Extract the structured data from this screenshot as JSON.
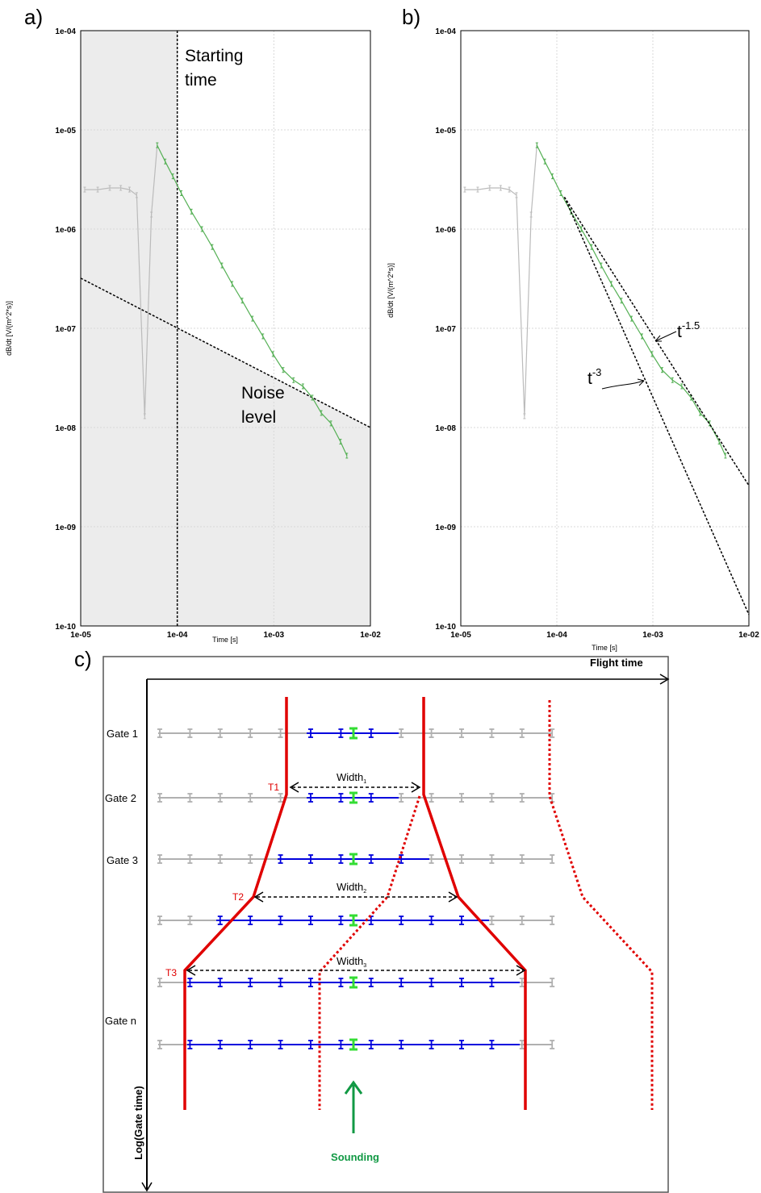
{
  "figure": {
    "panel_labels": [
      "a)",
      "b)",
      "c)"
    ]
  },
  "chart_data": [
    {
      "type": "line",
      "panel": "a)",
      "xscale": "log",
      "yscale": "log",
      "xlim": [
        1e-05,
        0.01
      ],
      "ylim": [
        1e-10,
        0.0001
      ],
      "xlabel": "Time [s]",
      "ylabel": "dB/dt [V/(m^2*s)]",
      "xticks": [
        "1e-05",
        "1e-04",
        "1e-03",
        "1e-02"
      ],
      "yticks": [
        "1e-10",
        "1e-09",
        "1e-08",
        "1e-07",
        "1e-06",
        "1e-05",
        "1e-04"
      ],
      "grid": true,
      "colors": {
        "gray_series": "#bbbbbb",
        "green_series": "#55b055",
        "shade": "#ececec",
        "dashed": "#000000"
      },
      "series": [
        {
          "x": [
            1.1e-05,
            1.5e-05,
            2e-05,
            2.6e-05,
            3.2e-05,
            3.8e-05,
            4.6e-05,
            5.4e-05,
            6.2e-05
          ],
          "y": [
            2.5e-06,
            2.5e-06,
            2.6e-06,
            2.6e-06,
            2.5e-06,
            2.2e-06,
            1.3e-08,
            1.4e-06,
            7e-06
          ]
        },
        {
          "x": [
            6.2e-05,
            7.5e-05,
            9e-05,
            0.00011,
            0.00014,
            0.00018,
            0.00023,
            0.00029,
            0.00037,
            0.00047,
            0.0006,
            0.00077,
            0.00098,
            0.00125,
            0.0016,
            0.002,
            0.0025,
            0.0031,
            0.0039,
            0.0049,
            0.0057
          ],
          "y": [
            7e-06,
            4.8e-06,
            3.4e-06,
            2.3e-06,
            1.5e-06,
            1e-06,
            6.6e-07,
            4.3e-07,
            2.8e-07,
            1.9e-07,
            1.25e-07,
            8.3e-08,
            5.5e-08,
            3.8e-08,
            3e-08,
            2.6e-08,
            2e-08,
            1.4e-08,
            1.1e-08,
            7.2e-09,
            5.2e-09
          ]
        }
      ],
      "noise_line": {
        "x": [
          1e-05,
          0.01
        ],
        "y": [
          3.2e-07,
          1e-08
        ]
      },
      "starting_time": 0.0001,
      "annotations": [
        {
          "lines": [
            "Starting",
            "time"
          ]
        },
        {
          "lines": [
            "Noise",
            "level"
          ]
        }
      ]
    },
    {
      "type": "line",
      "panel": "b)",
      "xscale": "log",
      "yscale": "log",
      "xlim": [
        1e-05,
        0.01
      ],
      "ylim": [
        1e-10,
        0.0001
      ],
      "xlabel": "Time [s]",
      "ylabel": "dB/dt [V/(m^2*s)]",
      "xticks": [
        "1e-05",
        "1e-04",
        "1e-03",
        "1e-02"
      ],
      "yticks": [
        "1e-10",
        "1e-09",
        "1e-08",
        "1e-07",
        "1e-06",
        "1e-05",
        "1e-04"
      ],
      "grid": true,
      "series": [
        {
          "x": [
            1.1e-05,
            1.5e-05,
            2e-05,
            2.6e-05,
            3.2e-05,
            3.8e-05,
            4.6e-05,
            5.4e-05,
            6.2e-05
          ],
          "y": [
            2.5e-06,
            2.5e-06,
            2.6e-06,
            2.6e-06,
            2.5e-06,
            2.2e-06,
            1.3e-08,
            1.4e-06,
            7e-06
          ]
        },
        {
          "x": [
            6.2e-05,
            7.5e-05,
            9e-05,
            0.00011,
            0.00014,
            0.00018,
            0.00023,
            0.00029,
            0.00037,
            0.00047,
            0.0006,
            0.00077,
            0.00098,
            0.00125,
            0.0016,
            0.002,
            0.0025,
            0.0031,
            0.0039,
            0.0049,
            0.0057
          ],
          "y": [
            7e-06,
            4.8e-06,
            3.4e-06,
            2.3e-06,
            1.5e-06,
            1e-06,
            6.6e-07,
            4.3e-07,
            2.8e-07,
            1.9e-07,
            1.25e-07,
            8.3e-08,
            5.5e-08,
            3.8e-08,
            3e-08,
            2.6e-08,
            2e-08,
            1.4e-08,
            1.1e-08,
            7.2e-09,
            5.2e-09
          ]
        }
      ],
      "slope_lines": [
        {
          "x": [
            0.00012,
            0.01
          ],
          "y": [
            2.1e-06,
            2.6e-09
          ],
          "label_base": "t",
          "label_exp": "-1.5"
        },
        {
          "x": [
            0.00012,
            0.01
          ],
          "y": [
            2.1e-06,
            1.3e-10
          ],
          "label_base": "t",
          "label_exp": "-3"
        }
      ]
    }
  ],
  "diagram": {
    "flight_time_label": "Flight time",
    "log_gate_time_label": "Log(Gate time)",
    "sounding_label": "Sounding",
    "gate_labels": [
      "Gate 1",
      "Gate 2",
      "Gate 3",
      "Gate n"
    ],
    "width_labels": [
      {
        "base": "Width",
        "sub": "1"
      },
      {
        "base": "Width",
        "sub": "2"
      },
      {
        "base": "Width",
        "sub": "3"
      }
    ],
    "t_labels": [
      "T1",
      "T2",
      "T3"
    ],
    "colors": {
      "red": "#e00000",
      "blue": "#0000dd",
      "green": "#33dd33",
      "gray": "#b0b0b0",
      "sounding": "#119944"
    }
  }
}
